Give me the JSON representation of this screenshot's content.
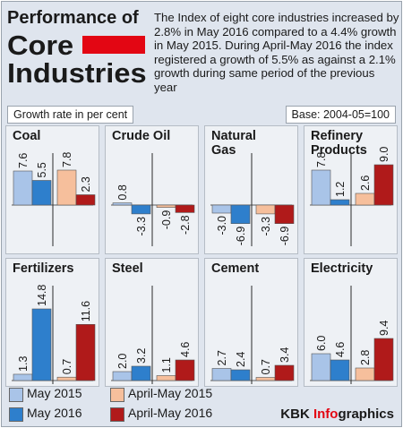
{
  "header": {
    "title_line1": "Performance of",
    "title_line2": "Core",
    "title_line3": "Industries",
    "description": "The Index of eight core industries increased by 2.8% in May 2016 compared to a 4.4% growth in May 2015. During April-May 2016 the index registered a growth of 5.5% as against a 2.1% growth during same period of the previous year",
    "accent_color": "#e30613"
  },
  "unit_label": "Growth rate in per cent",
  "base_label": "Base: 2004-05=100",
  "credit": {
    "brand": "KBK",
    "product_main": "Info",
    "product_rest": "graphics"
  },
  "legend": [
    {
      "label": "May 2015",
      "color": "#a9c4e8"
    },
    {
      "label": "May 2016",
      "color": "#2e7fcc"
    },
    {
      "label": "April-May 2015",
      "color": "#f6bf9c"
    },
    {
      "label": "April-May 2016",
      "color": "#b01a1a"
    }
  ],
  "chart_data": [
    {
      "type": "bar",
      "title": "Coal",
      "series_names": [
        "May 2015",
        "May 2016",
        "April-May 2015",
        "April-May 2016"
      ],
      "values": [
        7.6,
        5.5,
        7.8,
        2.3
      ]
    },
    {
      "type": "bar",
      "title": "Crude Oil",
      "series_names": [
        "May 2015",
        "May 2016",
        "April-May 2015",
        "April-May 2016"
      ],
      "values": [
        0.8,
        -3.3,
        -0.9,
        -2.8
      ]
    },
    {
      "type": "bar",
      "title": "Natural Gas",
      "series_names": [
        "May 2015",
        "May 2016",
        "April-May 2015",
        "April-May 2016"
      ],
      "values": [
        -3.0,
        -6.9,
        -3.3,
        -6.9
      ]
    },
    {
      "type": "bar",
      "title": "Refinery Products",
      "series_names": [
        "May 2015",
        "May 2016",
        "April-May 2015",
        "April-May 2016"
      ],
      "values": [
        7.8,
        1.2,
        2.6,
        9.0
      ]
    },
    {
      "type": "bar",
      "title": "Fertilizers",
      "series_names": [
        "May 2015",
        "May 2016",
        "April-May 2015",
        "April-May 2016"
      ],
      "values": [
        1.3,
        14.8,
        0.7,
        11.6
      ]
    },
    {
      "type": "bar",
      "title": "Steel",
      "series_names": [
        "May 2015",
        "May 2016",
        "April-May 2015",
        "April-May 2016"
      ],
      "values": [
        2.0,
        3.2,
        1.1,
        4.6
      ]
    },
    {
      "type": "bar",
      "title": "Cement",
      "series_names": [
        "May 2015",
        "May 2016",
        "April-May 2015",
        "April-May 2016"
      ],
      "values": [
        2.7,
        2.4,
        0.7,
        3.4
      ]
    },
    {
      "type": "bar",
      "title": "Electricity",
      "series_names": [
        "May 2015",
        "May 2016",
        "April-May 2015",
        "April-May 2016"
      ],
      "values": [
        6.0,
        4.6,
        2.8,
        9.4
      ]
    }
  ]
}
